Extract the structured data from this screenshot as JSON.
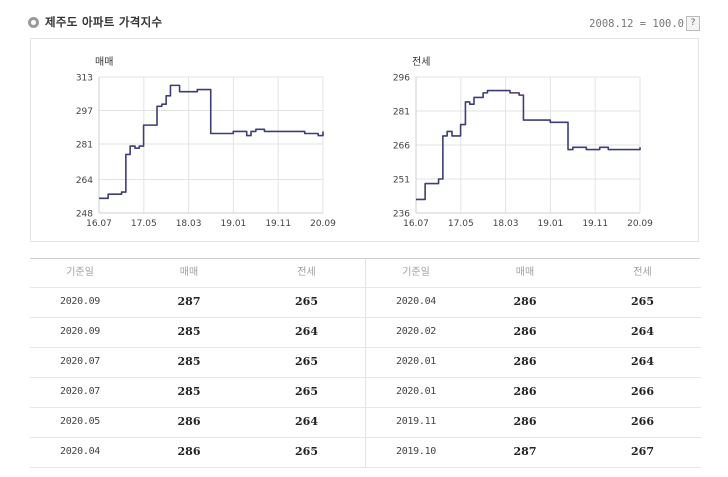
{
  "header": {
    "title": "제주도 아파트 가격지수",
    "base_note": "2008.12 = 100.0",
    "help_label": "?"
  },
  "chart_data": [
    {
      "type": "line",
      "title": "매매",
      "ylim": [
        248,
        313
      ],
      "y_ticks": [
        248,
        264,
        281,
        297,
        313
      ],
      "x_ticks": [
        "16.07",
        "17.05",
        "18.03",
        "19.01",
        "19.11",
        "20.09"
      ],
      "xlim": [
        2016.5,
        2020.67
      ],
      "grid": true,
      "color": "#3d3d7a",
      "x": [
        2016.5,
        2016.58,
        2016.67,
        2016.75,
        2016.83,
        2016.92,
        2017.0,
        2017.08,
        2017.17,
        2017.25,
        2017.33,
        2017.42,
        2017.5,
        2017.58,
        2017.67,
        2017.75,
        2017.83,
        2017.92,
        2018.0,
        2018.08,
        2018.17,
        2018.25,
        2018.33,
        2018.42,
        2018.5,
        2018.58,
        2018.67,
        2018.75,
        2018.83,
        2018.92,
        2019.0,
        2019.08,
        2019.17,
        2019.25,
        2019.33,
        2019.42,
        2019.5,
        2019.58,
        2019.67,
        2019.75,
        2019.83,
        2019.92,
        2020.0,
        2020.08,
        2020.17,
        2020.25,
        2020.33,
        2020.42,
        2020.5,
        2020.58,
        2020.67
      ],
      "values": [
        255,
        255,
        257,
        257,
        257,
        258,
        276,
        280,
        279,
        280,
        290,
        290,
        290,
        299,
        300,
        304,
        309,
        309,
        306,
        306,
        306,
        306,
        307,
        307,
        307,
        286,
        286,
        286,
        286,
        286,
        287,
        287,
        287,
        285,
        287,
        288,
        288,
        287,
        287,
        287,
        287,
        287,
        287,
        287,
        287,
        287,
        286,
        286,
        286,
        285,
        287
      ]
    },
    {
      "type": "line",
      "title": "전세",
      "ylim": [
        236,
        296
      ],
      "y_ticks": [
        236,
        251,
        266,
        281,
        296
      ],
      "x_ticks": [
        "16.07",
        "17.05",
        "18.03",
        "19.01",
        "19.11",
        "20.09"
      ],
      "xlim": [
        2016.5,
        2020.67
      ],
      "grid": true,
      "color": "#3d3d7a",
      "x": [
        2016.5,
        2016.58,
        2016.67,
        2016.75,
        2016.83,
        2016.92,
        2017.0,
        2017.08,
        2017.17,
        2017.25,
        2017.33,
        2017.42,
        2017.5,
        2017.58,
        2017.67,
        2017.75,
        2017.83,
        2017.92,
        2018.0,
        2018.08,
        2018.17,
        2018.25,
        2018.33,
        2018.42,
        2018.5,
        2018.58,
        2018.67,
        2018.75,
        2018.83,
        2018.92,
        2019.0,
        2019.08,
        2019.17,
        2019.25,
        2019.33,
        2019.42,
        2019.5,
        2019.58,
        2019.67,
        2019.75,
        2019.83,
        2019.92,
        2020.0,
        2020.08,
        2020.17,
        2020.25,
        2020.33,
        2020.42,
        2020.5,
        2020.58,
        2020.67
      ],
      "values": [
        242,
        242,
        249,
        249,
        249,
        251,
        270,
        272,
        270,
        270,
        275,
        285,
        284,
        287,
        287,
        289,
        290,
        290,
        290,
        290,
        290,
        289,
        289,
        288,
        277,
        277,
        277,
        277,
        277,
        277,
        276,
        276,
        276,
        276,
        264,
        265,
        265,
        265,
        264,
        264,
        264,
        265,
        265,
        264,
        264,
        264,
        264,
        264,
        264,
        264,
        265
      ]
    }
  ],
  "table": {
    "headers": [
      "기준일",
      "매매",
      "전세"
    ],
    "left_rows": [
      [
        "2020.09",
        "287",
        "265"
      ],
      [
        "2020.09",
        "285",
        "264"
      ],
      [
        "2020.07",
        "285",
        "265"
      ],
      [
        "2020.07",
        "285",
        "265"
      ],
      [
        "2020.05",
        "286",
        "264"
      ],
      [
        "2020.04",
        "286",
        "265"
      ]
    ],
    "right_rows": [
      [
        "2020.04",
        "286",
        "265"
      ],
      [
        "2020.02",
        "286",
        "264"
      ],
      [
        "2020.01",
        "286",
        "264"
      ],
      [
        "2020.01",
        "286",
        "266"
      ],
      [
        "2019.11",
        "286",
        "266"
      ],
      [
        "2019.10",
        "287",
        "267"
      ]
    ]
  }
}
